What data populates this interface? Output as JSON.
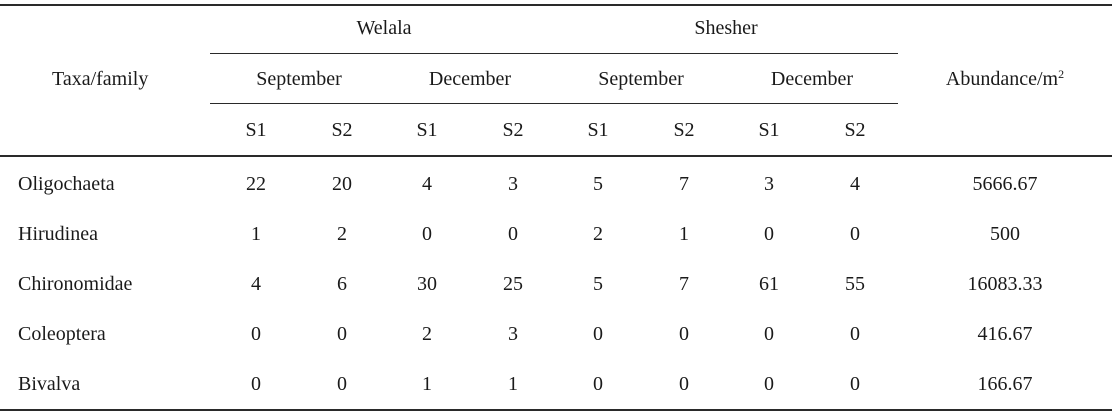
{
  "table": {
    "header": {
      "taxa_label": "Taxa/family",
      "abundance_label": "Abundance/m",
      "abundance_sup": "2",
      "sites": [
        "Welala",
        "Shesher"
      ],
      "months": [
        "September",
        "December",
        "September",
        "December"
      ],
      "samples": [
        "S1",
        "S2",
        "S1",
        "S2",
        "S1",
        "S2",
        "S1",
        "S2"
      ]
    },
    "rows": [
      {
        "taxon": "Oligochaeta",
        "values": [
          "22",
          "20",
          "4",
          "3",
          "5",
          "7",
          "3",
          "4"
        ],
        "abundance": "5666.67"
      },
      {
        "taxon": "Hirudinea",
        "values": [
          "1",
          "2",
          "0",
          "0",
          "2",
          "1",
          "0",
          "0"
        ],
        "abundance": "500"
      },
      {
        "taxon": "Chironomidae",
        "values": [
          "4",
          "6",
          "30",
          "25",
          "5",
          "7",
          "61",
          "55"
        ],
        "abundance": "16083.33"
      },
      {
        "taxon": "Coleoptera",
        "values": [
          "0",
          "0",
          "2",
          "3",
          "0",
          "0",
          "0",
          "0"
        ],
        "abundance": "416.67"
      },
      {
        "taxon": "Bivalva",
        "values": [
          "0",
          "0",
          "1",
          "1",
          "0",
          "0",
          "0",
          "0"
        ],
        "abundance": "166.67"
      }
    ]
  }
}
